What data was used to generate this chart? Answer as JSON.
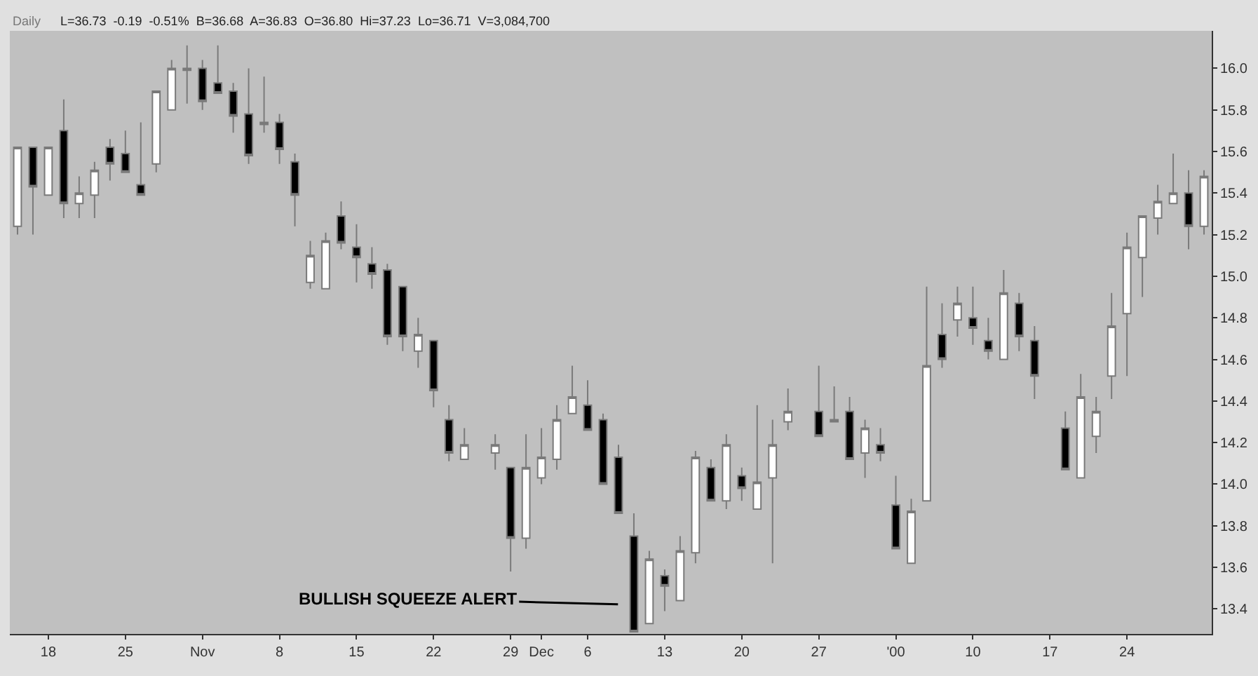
{
  "chart_data": {
    "type": "candlestick",
    "categories": [
      null,
      null,
      "18",
      null,
      null,
      null,
      null,
      "25",
      null,
      null,
      null,
      null,
      "Nov",
      null,
      null,
      null,
      null,
      "8",
      null,
      null,
      null,
      null,
      "15",
      null,
      null,
      null,
      null,
      "22",
      null,
      null,
      null,
      null,
      "29",
      null,
      "Dec",
      null,
      null,
      "6",
      null,
      null,
      null,
      null,
      "13",
      null,
      null,
      null,
      null,
      "20",
      null,
      null,
      null,
      null,
      "27",
      null,
      null,
      null,
      null,
      "'00",
      null,
      null,
      null,
      null,
      "10",
      null,
      null,
      null,
      null,
      "17",
      null,
      null,
      null,
      null,
      "24",
      null,
      null,
      null,
      null,
      null
    ],
    "ohlc": [
      [
        15.24,
        15.62,
        15.2,
        15.62
      ],
      [
        15.62,
        15.62,
        15.2,
        15.43
      ],
      [
        15.39,
        15.62,
        15.39,
        15.62
      ],
      [
        15.7,
        15.85,
        15.28,
        15.35
      ],
      [
        15.35,
        15.48,
        15.28,
        15.4
      ],
      [
        15.39,
        15.55,
        15.28,
        15.51
      ],
      [
        15.62,
        15.66,
        15.46,
        15.54
      ],
      [
        15.59,
        15.7,
        15.5,
        15.5
      ],
      [
        15.44,
        15.74,
        15.39,
        15.39
      ],
      [
        15.54,
        15.89,
        15.5,
        15.89
      ],
      [
        15.8,
        16.04,
        15.8,
        16.0
      ],
      [
        15.99,
        16.11,
        15.83,
        16.0
      ],
      [
        16.0,
        16.04,
        15.8,
        15.84
      ],
      [
        15.93,
        16.11,
        15.88,
        15.88
      ],
      [
        15.89,
        15.93,
        15.69,
        15.77
      ],
      [
        15.78,
        16.0,
        15.54,
        15.58
      ],
      [
        15.73,
        15.96,
        15.69,
        15.74
      ],
      [
        15.74,
        15.78,
        15.54,
        15.61
      ],
      [
        15.55,
        15.59,
        15.24,
        15.39
      ],
      [
        14.97,
        15.17,
        14.94,
        15.1
      ],
      [
        14.94,
        15.21,
        14.94,
        15.17
      ],
      [
        15.29,
        15.36,
        15.13,
        15.16
      ],
      [
        15.14,
        15.25,
        14.97,
        15.09
      ],
      [
        15.06,
        15.14,
        14.94,
        15.01
      ],
      [
        15.03,
        15.06,
        14.67,
        14.71
      ],
      [
        14.95,
        14.95,
        14.64,
        14.71
      ],
      [
        14.64,
        14.8,
        14.56,
        14.72
      ],
      [
        14.69,
        14.69,
        14.37,
        14.45
      ],
      [
        14.31,
        14.38,
        14.11,
        14.15
      ],
      [
        14.12,
        14.27,
        14.12,
        14.19
      ],
      null,
      [
        14.15,
        14.24,
        14.07,
        14.19
      ],
      [
        14.08,
        14.08,
        13.58,
        13.74
      ],
      [
        13.74,
        14.24,
        13.69,
        14.08
      ],
      [
        14.03,
        14.27,
        14.0,
        14.13
      ],
      [
        14.12,
        14.38,
        14.07,
        14.31
      ],
      [
        14.34,
        14.57,
        14.34,
        14.42
      ],
      [
        14.38,
        14.5,
        14.26,
        14.26
      ],
      [
        14.31,
        14.34,
        14.0,
        14.0
      ],
      [
        14.13,
        14.19,
        13.86,
        13.86
      ],
      [
        13.75,
        13.86,
        13.29,
        13.29
      ],
      [
        13.33,
        13.68,
        13.33,
        13.64
      ],
      [
        13.56,
        13.59,
        13.39,
        13.51
      ],
      [
        13.44,
        13.75,
        13.44,
        13.68
      ],
      [
        13.67,
        14.16,
        13.62,
        14.13
      ],
      [
        14.08,
        14.12,
        13.92,
        13.92
      ],
      [
        13.92,
        14.24,
        13.88,
        14.19
      ],
      [
        14.04,
        14.08,
        13.92,
        13.98
      ],
      [
        13.88,
        14.38,
        13.88,
        14.01
      ],
      [
        14.03,
        14.31,
        13.62,
        14.19
      ],
      [
        14.3,
        14.46,
        14.26,
        14.35
      ],
      null,
      [
        14.35,
        14.57,
        14.23,
        14.23
      ],
      [
        14.3,
        14.47,
        14.3,
        14.31
      ],
      [
        14.35,
        14.42,
        14.12,
        14.12
      ],
      [
        14.15,
        14.31,
        14.03,
        14.27
      ],
      [
        14.19,
        14.27,
        14.11,
        14.15
      ],
      [
        13.9,
        14.04,
        13.69,
        13.69
      ],
      [
        13.62,
        13.93,
        13.62,
        13.87
      ],
      [
        13.92,
        14.95,
        13.92,
        14.57
      ],
      [
        14.72,
        14.87,
        14.56,
        14.6
      ],
      [
        14.79,
        14.95,
        14.71,
        14.87
      ],
      [
        14.8,
        14.95,
        14.67,
        14.75
      ],
      [
        14.69,
        14.8,
        14.6,
        14.64
      ],
      [
        14.6,
        15.03,
        14.6,
        14.92
      ],
      [
        14.87,
        14.92,
        14.64,
        14.71
      ],
      [
        14.69,
        14.76,
        14.41,
        14.52
      ],
      null,
      [
        14.27,
        14.35,
        14.07,
        14.07
      ],
      [
        14.03,
        14.53,
        14.03,
        14.42
      ],
      [
        14.23,
        14.42,
        14.15,
        14.35
      ],
      [
        14.52,
        14.92,
        14.41,
        14.76
      ],
      [
        14.82,
        15.21,
        14.52,
        15.14
      ],
      [
        15.09,
        15.29,
        14.9,
        15.29
      ],
      [
        15.28,
        15.44,
        15.2,
        15.36
      ],
      [
        15.35,
        15.59,
        15.35,
        15.4
      ],
      [
        15.4,
        15.51,
        15.13,
        15.24
      ],
      [
        15.24,
        15.51,
        15.2,
        15.48
      ]
    ],
    "ylim": [
      13.28,
      16.18
    ],
    "yticks": [
      13.4,
      13.6,
      13.8,
      {
        "value": 14,
        "label": "14.0"
      },
      14.2,
      14.4,
      14.6,
      14.8,
      {
        "value": 15,
        "label": "15.0"
      },
      15.2,
      15.4,
      15.6,
      15.8,
      {
        "value": 16,
        "label": "16.0"
      }
    ],
    "grid": false,
    "annotations": [
      "Daily",
      "L=36.73  -0.19  -0.51%  B=36.68  A=36.83  O=36.80  Hi=37.23  Lo=36.71  V=3,084,700",
      "BULLISH SQUEEZE ALERT"
    ]
  }
}
